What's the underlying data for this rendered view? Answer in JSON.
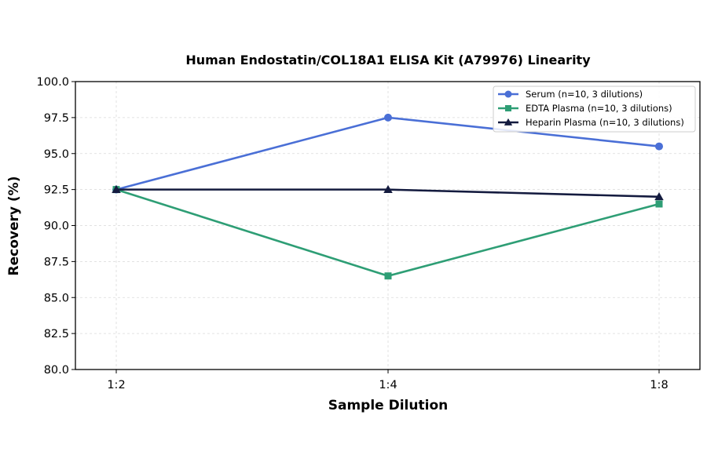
{
  "chart_data": {
    "type": "line",
    "title": "Human Endostatin/COL18A1 ELISA Kit (A79976) Linearity",
    "xlabel": "Sample Dilution",
    "ylabel": "Recovery (%)",
    "categories": [
      "1:2",
      "1:4",
      "1:8"
    ],
    "ylim": [
      80.0,
      100.0
    ],
    "yticks": [
      "80.0",
      "82.5",
      "85.0",
      "87.5",
      "90.0",
      "92.5",
      "95.0",
      "97.5",
      "100.0"
    ],
    "grid": true,
    "legend_position": "top-right",
    "series": [
      {
        "name": "Serum (n=10, 3 dilutions)",
        "values": [
          92.5,
          97.5,
          95.5
        ],
        "color": "#4a6fd6",
        "marker": "circle"
      },
      {
        "name": "EDTA Plasma (n=10, 3 dilutions)",
        "values": [
          92.5,
          86.5,
          91.5
        ],
        "color": "#2e9e75",
        "marker": "square"
      },
      {
        "name": "Heparin Plasma (n=10, 3 dilutions)",
        "values": [
          92.5,
          92.5,
          92.0
        ],
        "color": "#141b3f",
        "marker": "triangle"
      }
    ]
  }
}
